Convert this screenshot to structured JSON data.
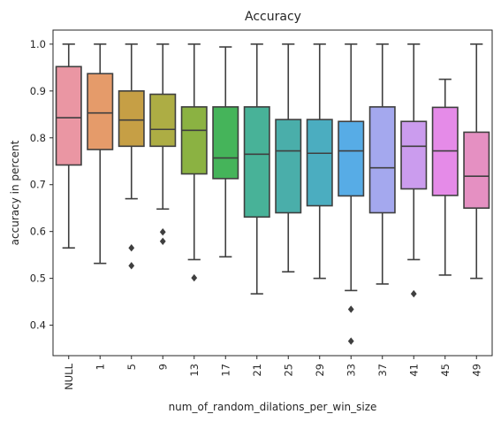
{
  "chart_data": {
    "type": "box",
    "title": "Accuracy",
    "xlabel": "num_of_random_dilations_per_win_size",
    "ylabel": "accuracy in percent",
    "ylim": [
      0.335,
      1.03
    ],
    "yticks": [
      "0.4",
      "0.5",
      "0.6",
      "0.7",
      "0.8",
      "0.9",
      "1.0"
    ],
    "grid": false,
    "categories": [
      "NULL",
      "1",
      "5",
      "9",
      "13",
      "17",
      "21",
      "25",
      "29",
      "33",
      "37",
      "41",
      "45",
      "49"
    ],
    "colors": [
      "#ea96a3",
      "#e59b6a",
      "#c69f45",
      "#adad44",
      "#8bb242",
      "#45b45a",
      "#48b298",
      "#4aaeaa",
      "#4badc0",
      "#57ace6",
      "#a4a8ee",
      "#cb9cee",
      "#e58be8",
      "#e590c2"
    ],
    "boxes": [
      {
        "whislo": 0.565,
        "q1": 0.742,
        "med": 0.843,
        "q3": 0.952,
        "whishi": 1.0,
        "fliers": []
      },
      {
        "whislo": 0.532,
        "q1": 0.775,
        "med": 0.853,
        "q3": 0.937,
        "whishi": 1.0,
        "fliers": []
      },
      {
        "whislo": 0.67,
        "q1": 0.782,
        "med": 0.838,
        "q3": 0.9,
        "whishi": 1.0,
        "fliers": [
          0.565,
          0.527
        ]
      },
      {
        "whislo": 0.648,
        "q1": 0.782,
        "med": 0.818,
        "q3": 0.893,
        "whishi": 1.0,
        "fliers": [
          0.599,
          0.579
        ]
      },
      {
        "whislo": 0.54,
        "q1": 0.723,
        "med": 0.816,
        "q3": 0.866,
        "whishi": 1.0,
        "fliers": [
          0.501
        ]
      },
      {
        "whislo": 0.546,
        "q1": 0.713,
        "med": 0.757,
        "q3": 0.866,
        "whishi": 0.994,
        "fliers": []
      },
      {
        "whislo": 0.467,
        "q1": 0.631,
        "med": 0.765,
        "q3": 0.866,
        "whishi": 1.0,
        "fliers": []
      },
      {
        "whislo": 0.514,
        "q1": 0.64,
        "med": 0.772,
        "q3": 0.839,
        "whishi": 1.0,
        "fliers": []
      },
      {
        "whislo": 0.5,
        "q1": 0.655,
        "med": 0.767,
        "q3": 0.839,
        "whishi": 1.0,
        "fliers": []
      },
      {
        "whislo": 0.474,
        "q1": 0.676,
        "med": 0.772,
        "q3": 0.835,
        "whishi": 1.0,
        "fliers": [
          0.434,
          0.366
        ]
      },
      {
        "whislo": 0.488,
        "q1": 0.64,
        "med": 0.736,
        "q3": 0.866,
        "whishi": 1.0,
        "fliers": []
      },
      {
        "whislo": 0.54,
        "q1": 0.691,
        "med": 0.782,
        "q3": 0.835,
        "whishi": 1.0,
        "fliers": [
          0.467
        ]
      },
      {
        "whislo": 0.507,
        "q1": 0.677,
        "med": 0.772,
        "q3": 0.865,
        "whishi": 0.925,
        "fliers": []
      },
      {
        "whislo": 0.5,
        "q1": 0.65,
        "med": 0.718,
        "q3": 0.812,
        "whishi": 1.0,
        "fliers": []
      }
    ]
  }
}
